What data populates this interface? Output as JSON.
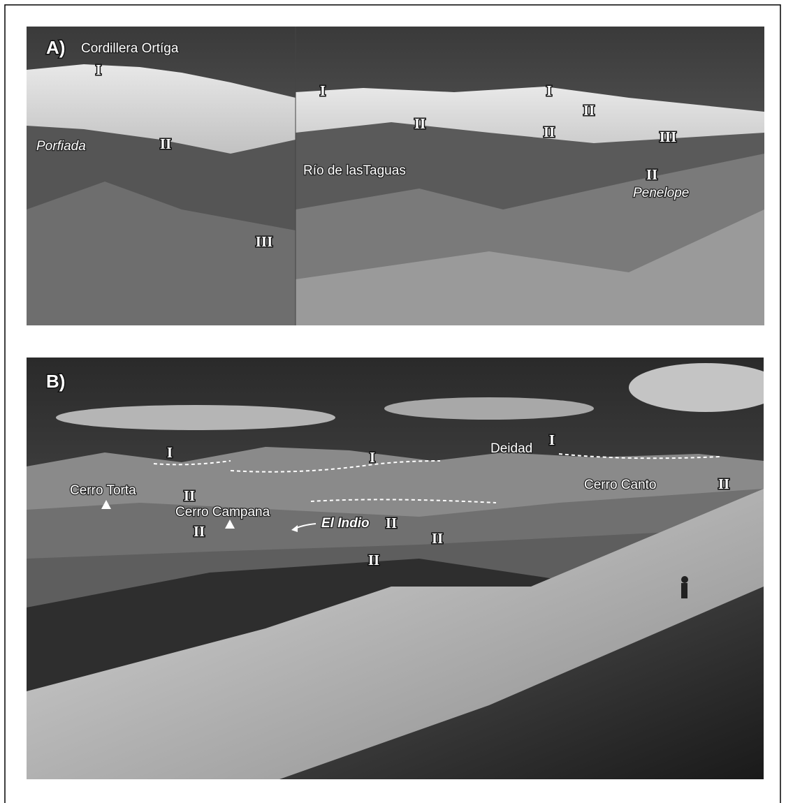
{
  "panel_a": {
    "label": "A)",
    "annotations": [
      "Cordillera Ortíga",
      "I",
      "Porfiada",
      "II",
      "III",
      "I",
      "Río de lasTaguas",
      "II",
      "I",
      "II",
      "II",
      "III",
      "II",
      "Penelope"
    ]
  },
  "panel_b": {
    "label": "B)",
    "annotations": [
      "I",
      "I",
      "Deidad",
      "I",
      "Cerro Torta",
      "Cerro Canto",
      "II",
      "II",
      "Cerro Campana",
      "El Indio",
      "II",
      "II",
      "II",
      "II"
    ]
  }
}
